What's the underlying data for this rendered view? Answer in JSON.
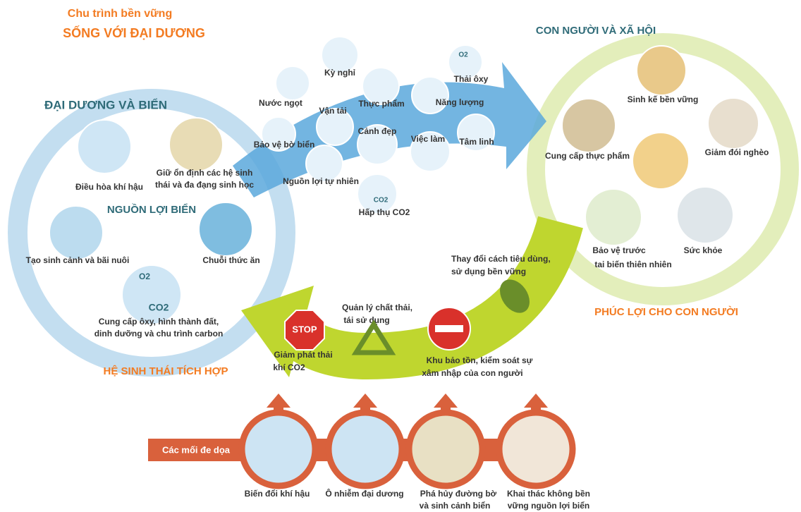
{
  "header": {
    "line1": "Chu trình bền vững",
    "line2": "SỐNG VỚI ĐẠI DƯƠNG"
  },
  "ocean": {
    "title": "ĐẠI DƯƠNG VÀ BIỂN",
    "subtitle": "NGUỒN LỢI BIỂN",
    "footer": "HỆ SINH THÁI TÍCH HỢP",
    "items": [
      [
        "Điều hòa khí hậu"
      ],
      [
        "Giữ ổn định các hệ sinh",
        "thái và đa đạng sinh học"
      ],
      [
        "Tạo sinh cảnh và bãi nuôi"
      ],
      [
        "Chuỗi thức ăn"
      ],
      [
        "Cung cấp ôxy, hình thành đất,",
        "dinh dưỡng và chu trình carbon"
      ]
    ],
    "icon_labels": [
      "O2",
      "CO2"
    ]
  },
  "services": {
    "items": [
      "Kỳ nghỉ",
      "Nước ngọt",
      "Vận tải",
      "Thực phẩm",
      "Năng lượng",
      "Thải ôxy",
      "Cảnh đẹp",
      "Bảo vệ bờ biển",
      "Việc làm",
      "Tâm linh",
      "Nguồn lợi tự nhiên",
      "Hấp thụ CO2"
    ],
    "icon_labels": [
      "O2",
      "CO2"
    ]
  },
  "society": {
    "title": "CON NGƯỜI VÀ XÃ HỘI",
    "footer": "PHÚC LỢI CHO CON NGƯỜI",
    "items": [
      [
        "Sinh kế bền vững"
      ],
      [
        "Cung cấp thực phẩm"
      ],
      [
        "Giảm đói nghèo"
      ],
      [
        "Bảo vệ trước",
        "tai biến thiên nhiên"
      ],
      [
        "Sức khỏe"
      ]
    ]
  },
  "actions": {
    "items": [
      [
        "Thay đổi cách tiêu dùng,",
        "sử dụng bền vững"
      ],
      [
        "Quản lý chất thải,",
        "tái sử dụng"
      ],
      [
        "Giảm phát thải",
        "khí CO2"
      ],
      [
        "Khu bảo tồn, kiểm soát sự",
        "xâm nhập của con người"
      ]
    ],
    "stop_sign": "STOP"
  },
  "threats": {
    "title": "Các mối đe dọa",
    "items": [
      [
        "Biến đổi khí hậu"
      ],
      [
        "Ô nhiễm đại dương"
      ],
      [
        "Phá hủy đường bờ",
        "và sinh cảnh biển"
      ],
      [
        "Khai thác không bền",
        "vững nguồn lợi biển"
      ]
    ]
  }
}
